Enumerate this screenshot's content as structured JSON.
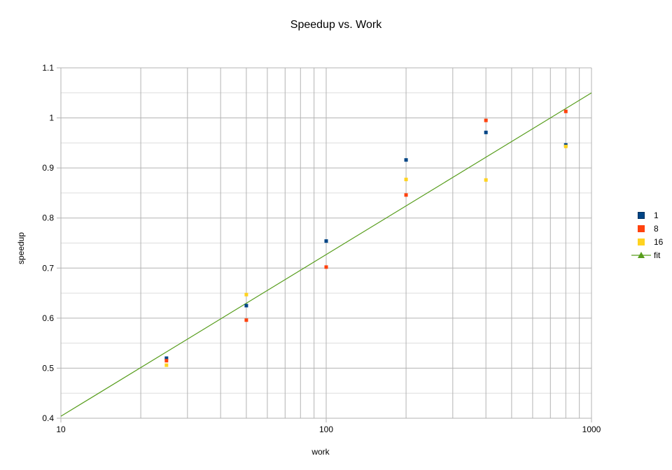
{
  "chart_data": {
    "type": "scatter",
    "title": "Speedup vs. Work",
    "xlabel": "work",
    "ylabel": "speedup",
    "x_scale": "log",
    "xlim": [
      10,
      1000
    ],
    "ylim": [
      0.4,
      1.1
    ],
    "x_ticks": [
      10,
      100,
      1000
    ],
    "x_tick_labels": [
      "10",
      "100",
      "1000"
    ],
    "y_ticks": [
      0.4,
      0.5,
      0.6,
      0.7,
      0.8,
      0.9,
      1.0,
      1.1
    ],
    "y_tick_labels": [
      "0.4",
      "0.5",
      "0.6",
      "0.7",
      "0.8",
      "0.9",
      "1",
      "1.1"
    ],
    "grid": true,
    "legend_position": "right",
    "x": [
      25,
      50,
      100,
      200,
      400,
      800
    ],
    "series": [
      {
        "name": "1",
        "color": "#004586",
        "marker": "square",
        "values": [
          0.52,
          0.625,
          0.754,
          0.916,
          0.971,
          0.946
        ]
      },
      {
        "name": "8",
        "color": "#ff420e",
        "marker": "square",
        "values": [
          0.515,
          0.596,
          0.702,
          0.846,
          0.995,
          1.013
        ]
      },
      {
        "name": "16",
        "color": "#ffd320",
        "marker": "square",
        "values": [
          0.506,
          0.647,
          null,
          0.877,
          0.876,
          0.943
        ]
      }
    ],
    "fit": {
      "name": "fit",
      "color": "#579d1c",
      "marker": "triangle",
      "x": [
        10,
        1000
      ],
      "values": [
        0.404,
        1.05
      ]
    }
  }
}
